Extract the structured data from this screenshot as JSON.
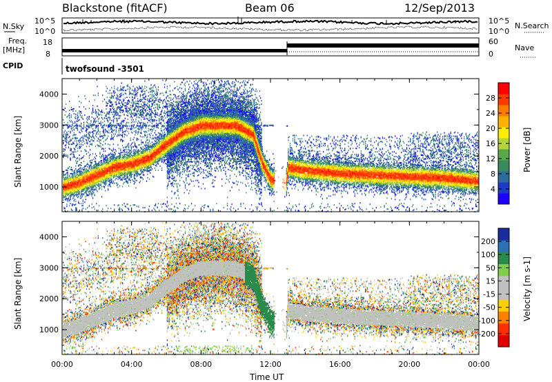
{
  "header": {
    "station": "Blackstone (fitACF)",
    "beam": "Beam 06",
    "date": "12/Sep/2013"
  },
  "noise_panel": {
    "left_label": "N.Sky",
    "left_ticks": [
      "10^5",
      "10^0"
    ],
    "right_label": "N.Search",
    "right_ticks": [
      "10^5",
      "10^0"
    ]
  },
  "freq_panel": {
    "left_label_line1": "Freq.",
    "left_label_line2": "[MHz]",
    "left_ticks": [
      "18",
      "8"
    ],
    "right_label": "Nave",
    "right_ticks": [
      "60",
      "0"
    ],
    "cpid_label": "CPID",
    "cpid_value": "twofsound -3501"
  },
  "colorbars": {
    "power": {
      "label": "Power [dB]",
      "ticks": [
        "28",
        "24",
        "20",
        "16",
        "12",
        "8",
        "4"
      ],
      "colors": [
        "#1d00ff",
        "#1e3bc8",
        "#2c6d9a",
        "#3a8a5c",
        "#5aa84c",
        "#b4d43a",
        "#ffee00",
        "#ffb000",
        "#ff7a00",
        "#ff3a00",
        "#ff0000"
      ]
    },
    "velocity": {
      "label": "Velocity [m s-1]",
      "ticks": [
        "200",
        "100",
        "50",
        "15",
        "-15",
        "-50",
        "-100",
        "-200"
      ],
      "colors": [
        "#1b2c9c",
        "#2f6fb4",
        "#2a8a4a",
        "#7ed04a",
        "#c0c0c0",
        "#c0c0c0",
        "#ffd000",
        "#ff8000",
        "#ff3000",
        "#e00000"
      ]
    }
  },
  "chart_data": [
    {
      "type": "heatmap",
      "title": "Power [dB]",
      "xlabel": "",
      "ylabel": "Slant Range [km]",
      "x_ticks": [
        "00:00",
        "04:00",
        "08:00",
        "12:00",
        "16:00",
        "20:00",
        "00:00"
      ],
      "y_ticks": [
        "1000",
        "2000",
        "3000",
        "4000"
      ],
      "xlim_hours": [
        0,
        24
      ],
      "ylim_km": [
        200,
        4500
      ],
      "main_echo_band": {
        "time_h": [
          0,
          1,
          2,
          3,
          4,
          5,
          6,
          7,
          8,
          9,
          10,
          11,
          11.5,
          12,
          12.9,
          13,
          14,
          16,
          18,
          20,
          22,
          24
        ],
        "range_km": [
          1000,
          1150,
          1400,
          1650,
          1750,
          1950,
          2400,
          2800,
          3000,
          3000,
          3000,
          2700,
          1800,
          1250,
          1150,
          1650,
          1550,
          1450,
          1400,
          1350,
          1300,
          1200
        ]
      }
    },
    {
      "type": "heatmap",
      "title": "Velocity [m s-1]",
      "xlabel": "Time UT",
      "ylabel": "Slant Range [km]",
      "x_ticks": [
        "00:00",
        "04:00",
        "08:00",
        "12:00",
        "16:00",
        "20:00",
        "00:00"
      ],
      "y_ticks": [
        "1000",
        "2000",
        "3000",
        "4000"
      ],
      "xlim_hours": [
        0,
        24
      ],
      "ylim_km": [
        200,
        4500
      ]
    }
  ]
}
